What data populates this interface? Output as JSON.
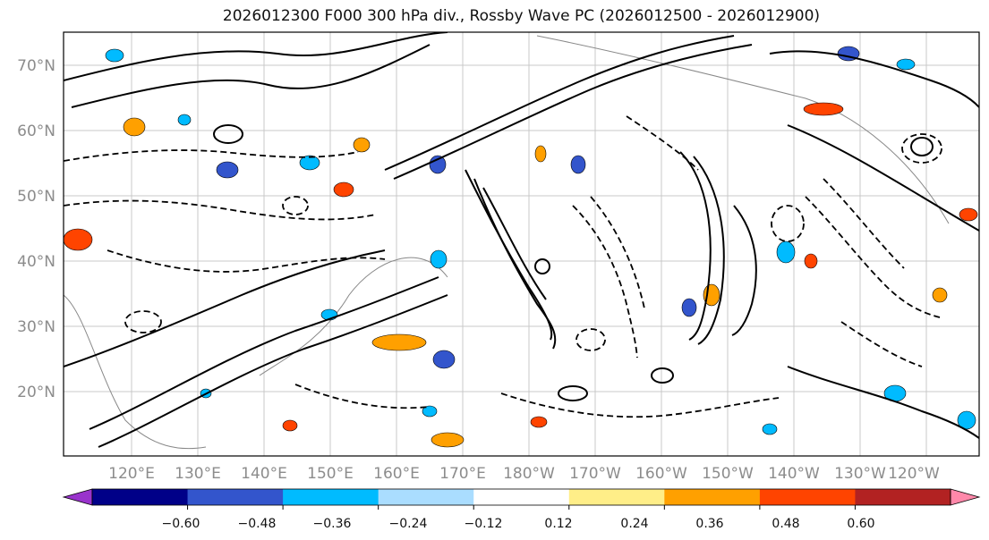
{
  "title": "2026012300 F000 300 hPa div., Rossby Wave PC (2026012500 - 2026012900)",
  "lat_labels": [
    "70°N",
    "60°N",
    "50°N",
    "40°N",
    "30°N",
    "20°N"
  ],
  "lon_labels": [
    "120°E",
    "130°E",
    "140°E",
    "150°E",
    "160°E",
    "170°E",
    "180°W",
    "170°W",
    "160°W",
    "150°W",
    "140°W",
    "130°W",
    "120°W"
  ],
  "colorbar": {
    "colors": [
      "#9933cc",
      "#000088",
      "#3355cc",
      "#00bbff",
      "#aaddff",
      "#ffffff",
      "#ffee88",
      "#ffa000",
      "#ff4400",
      "#b22222",
      "#ff88aa"
    ],
    "ticks": [
      "−0.60",
      "−0.48",
      "−0.36",
      "−0.24",
      "−0.12",
      "0.12",
      "0.24",
      "0.36",
      "0.48",
      "0.60"
    ]
  }
}
